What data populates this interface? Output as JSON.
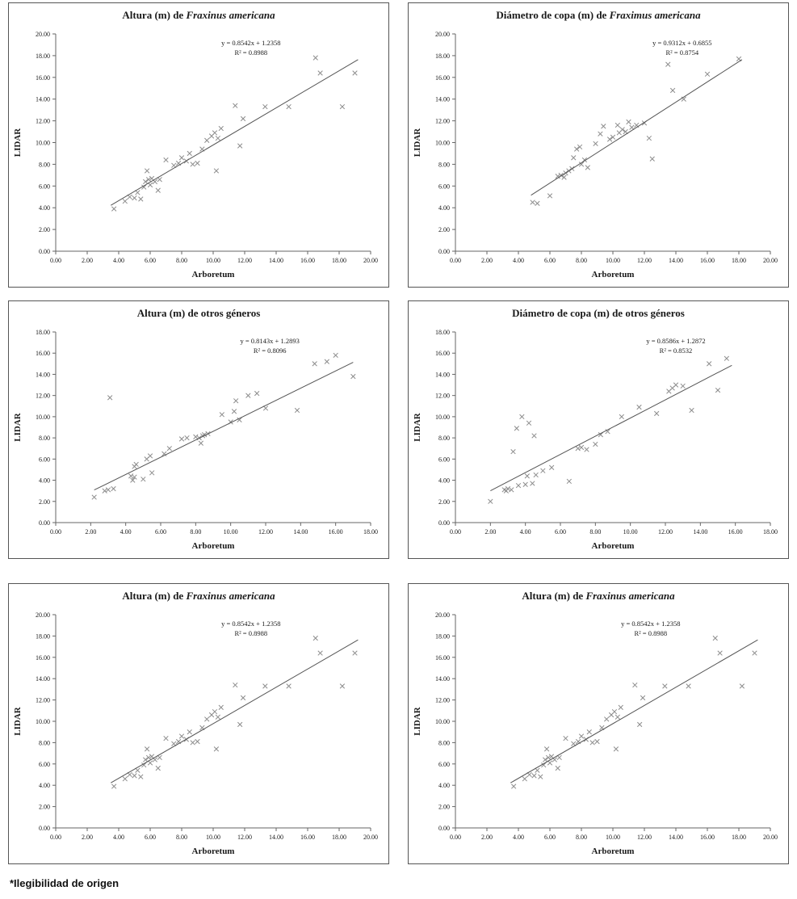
{
  "page": {
    "footnote": "*Ilegibilidad de origen"
  },
  "chart_data": [
    {
      "type": "scatter",
      "title_prefix": "Altura (m) de ",
      "title_italic": "Fraxinus americana",
      "equation_line1": "y = 0.8542x + 1.2358",
      "equation_line2": "R² = 0.8988",
      "xlabel": "Arboretum",
      "ylabel": "LIDAR",
      "xlim": [
        0,
        20
      ],
      "ylim": [
        0,
        20
      ],
      "tick_step": 2,
      "grid": false,
      "marker": "x",
      "marker_color": "#8c8c8c",
      "eq_x_frac": 0.62,
      "trendline": {
        "slope": 0.8542,
        "intercept": 1.2358,
        "x_start": 3.5,
        "x_end": 19.2
      },
      "points": [
        [
          3.7,
          3.9
        ],
        [
          4.4,
          4.6
        ],
        [
          4.7,
          5.0
        ],
        [
          5.0,
          4.9
        ],
        [
          5.2,
          5.4
        ],
        [
          5.4,
          4.8
        ],
        [
          5.6,
          5.9
        ],
        [
          5.7,
          6.4
        ],
        [
          5.8,
          7.4
        ],
        [
          5.9,
          6.6
        ],
        [
          6.0,
          6.1
        ],
        [
          6.1,
          6.7
        ],
        [
          6.3,
          6.4
        ],
        [
          6.5,
          5.6
        ],
        [
          6.6,
          6.6
        ],
        [
          7.0,
          8.4
        ],
        [
          7.5,
          7.9
        ],
        [
          7.8,
          8.1
        ],
        [
          8.0,
          8.6
        ],
        [
          8.3,
          8.3
        ],
        [
          8.5,
          9.0
        ],
        [
          8.7,
          8.0
        ],
        [
          9.0,
          8.1
        ],
        [
          9.3,
          9.4
        ],
        [
          9.6,
          10.2
        ],
        [
          9.9,
          10.6
        ],
        [
          10.1,
          10.9
        ],
        [
          10.2,
          7.4
        ],
        [
          10.3,
          10.4
        ],
        [
          10.5,
          11.3
        ],
        [
          11.4,
          13.4
        ],
        [
          11.7,
          9.7
        ],
        [
          11.9,
          12.2
        ],
        [
          13.3,
          13.3
        ],
        [
          14.8,
          13.3
        ],
        [
          16.5,
          17.8
        ],
        [
          16.8,
          16.4
        ],
        [
          18.2,
          13.3
        ],
        [
          19.0,
          16.4
        ]
      ]
    },
    {
      "type": "scatter",
      "title_prefix": "Diámetro de copa (m) de ",
      "title_italic": "Fraximus americana",
      "equation_line1": "y = 0.9312x + 0.6855",
      "equation_line2": "R² = 0.8754",
      "xlabel": "Arboretum",
      "ylabel": "LIDAR",
      "xlim": [
        0,
        20
      ],
      "ylim": [
        0,
        20
      ],
      "tick_step": 2,
      "grid": false,
      "marker": "x",
      "marker_color": "#8c8c8c",
      "eq_x_frac": 0.72,
      "trendline": {
        "slope": 0.9312,
        "intercept": 0.6855,
        "x_start": 4.8,
        "x_end": 18.2
      },
      "points": [
        [
          4.9,
          4.5
        ],
        [
          5.2,
          4.4
        ],
        [
          6.0,
          5.1
        ],
        [
          6.5,
          6.9
        ],
        [
          6.7,
          7.0
        ],
        [
          6.9,
          6.8
        ],
        [
          7.0,
          7.2
        ],
        [
          7.2,
          7.4
        ],
        [
          7.4,
          7.6
        ],
        [
          7.5,
          8.6
        ],
        [
          7.7,
          9.4
        ],
        [
          7.9,
          9.6
        ],
        [
          8.0,
          8.0
        ],
        [
          8.2,
          8.4
        ],
        [
          8.4,
          7.7
        ],
        [
          8.9,
          9.9
        ],
        [
          9.2,
          10.8
        ],
        [
          9.4,
          11.5
        ],
        [
          9.8,
          10.3
        ],
        [
          10.0,
          10.5
        ],
        [
          10.3,
          11.6
        ],
        [
          10.4,
          10.9
        ],
        [
          10.6,
          11.2
        ],
        [
          10.8,
          11.0
        ],
        [
          11.0,
          11.9
        ],
        [
          11.2,
          11.4
        ],
        [
          11.5,
          11.6
        ],
        [
          12.0,
          11.8
        ],
        [
          12.3,
          10.4
        ],
        [
          12.5,
          8.5
        ],
        [
          13.5,
          17.2
        ],
        [
          13.8,
          14.8
        ],
        [
          14.5,
          14.0
        ],
        [
          16.0,
          16.3
        ],
        [
          18.0,
          17.7
        ]
      ]
    },
    {
      "type": "scatter",
      "title_prefix": "Altura (m) de otros géneros",
      "title_italic": "",
      "equation_line1": "y = 0.8143x + 1.2893",
      "equation_line2": "R² = 0.8096",
      "xlabel": "Arboretum",
      "ylabel": "LIDAR",
      "xlim": [
        0,
        18
      ],
      "ylim": [
        0,
        18
      ],
      "tick_step": 2,
      "grid": false,
      "marker": "x",
      "marker_color": "#8c8c8c",
      "eq_x_frac": 0.68,
      "trendline": {
        "slope": 0.8143,
        "intercept": 1.2893,
        "x_start": 2.2,
        "x_end": 17.0
      },
      "points": [
        [
          2.2,
          2.4
        ],
        [
          2.8,
          3.0
        ],
        [
          3.0,
          3.1
        ],
        [
          3.1,
          11.8
        ],
        [
          3.3,
          3.2
        ],
        [
          4.3,
          4.4
        ],
        [
          4.4,
          4.0
        ],
        [
          4.5,
          4.3
        ],
        [
          4.5,
          5.3
        ],
        [
          4.6,
          5.5
        ],
        [
          5.0,
          4.1
        ],
        [
          5.2,
          6.0
        ],
        [
          5.4,
          6.3
        ],
        [
          5.5,
          4.7
        ],
        [
          6.2,
          6.5
        ],
        [
          6.5,
          7.0
        ],
        [
          7.2,
          7.9
        ],
        [
          7.5,
          8.0
        ],
        [
          8.0,
          8.1
        ],
        [
          8.2,
          8.0
        ],
        [
          8.3,
          7.5
        ],
        [
          8.4,
          8.2
        ],
        [
          8.5,
          8.3
        ],
        [
          8.7,
          8.4
        ],
        [
          9.5,
          10.2
        ],
        [
          10.0,
          9.5
        ],
        [
          10.2,
          10.5
        ],
        [
          10.3,
          11.5
        ],
        [
          10.5,
          9.7
        ],
        [
          11.0,
          12.0
        ],
        [
          11.5,
          12.2
        ],
        [
          12.0,
          10.8
        ],
        [
          13.8,
          10.6
        ],
        [
          14.8,
          15.0
        ],
        [
          15.5,
          15.2
        ],
        [
          16.0,
          15.8
        ],
        [
          17.0,
          13.8
        ]
      ]
    },
    {
      "type": "scatter",
      "title_prefix": "Diámetro de copa (m) de otros géneros",
      "title_italic": "",
      "equation_line1": "y = 0.8586x + 1.2872",
      "equation_line2": "R² = 0.8532",
      "xlabel": "Arboretum",
      "ylabel": "LIDAR",
      "xlim": [
        0,
        18
      ],
      "ylim": [
        0,
        18
      ],
      "tick_step": 2,
      "grid": false,
      "marker": "x",
      "marker_color": "#8c8c8c",
      "eq_x_frac": 0.7,
      "trendline": {
        "slope": 0.8586,
        "intercept": 1.2872,
        "x_start": 2.0,
        "x_end": 15.8
      },
      "points": [
        [
          2.0,
          2.0
        ],
        [
          2.8,
          3.1
        ],
        [
          2.9,
          3.0
        ],
        [
          3.0,
          3.2
        ],
        [
          3.2,
          3.1
        ],
        [
          3.3,
          6.7
        ],
        [
          3.5,
          8.9
        ],
        [
          3.6,
          3.5
        ],
        [
          3.8,
          10.0
        ],
        [
          4.0,
          3.6
        ],
        [
          4.1,
          4.4
        ],
        [
          4.2,
          9.4
        ],
        [
          4.4,
          3.7
        ],
        [
          4.5,
          8.2
        ],
        [
          4.6,
          4.5
        ],
        [
          5.0,
          4.9
        ],
        [
          5.5,
          5.2
        ],
        [
          6.5,
          3.9
        ],
        [
          7.0,
          7.0
        ],
        [
          7.2,
          7.1
        ],
        [
          7.5,
          6.9
        ],
        [
          8.0,
          7.4
        ],
        [
          8.3,
          8.3
        ],
        [
          8.7,
          8.6
        ],
        [
          9.5,
          10.0
        ],
        [
          10.5,
          10.9
        ],
        [
          11.5,
          10.3
        ],
        [
          12.2,
          12.4
        ],
        [
          12.4,
          12.7
        ],
        [
          12.6,
          13.0
        ],
        [
          13.0,
          12.9
        ],
        [
          13.5,
          10.6
        ],
        [
          14.5,
          15.0
        ],
        [
          15.0,
          12.5
        ],
        [
          15.5,
          15.5
        ]
      ]
    },
    {
      "type": "scatter",
      "title_prefix": "Altura (m) de ",
      "title_italic": "Fraxinus americana",
      "equation_line1": "y = 0.8542x + 1.2358",
      "equation_line2": "R² = 0.8988",
      "xlabel": "Arboretum",
      "ylabel": "LIDAR",
      "xlim": [
        0,
        20
      ],
      "ylim": [
        0,
        20
      ],
      "tick_step": 2,
      "grid": false,
      "marker": "x",
      "marker_color": "#8c8c8c",
      "eq_x_frac": 0.62,
      "trendline": {
        "slope": 0.8542,
        "intercept": 1.2358,
        "x_start": 3.5,
        "x_end": 19.2
      },
      "points": [
        [
          3.7,
          3.9
        ],
        [
          4.4,
          4.6
        ],
        [
          4.7,
          5.0
        ],
        [
          5.0,
          4.9
        ],
        [
          5.2,
          5.4
        ],
        [
          5.4,
          4.8
        ],
        [
          5.6,
          5.9
        ],
        [
          5.7,
          6.4
        ],
        [
          5.8,
          7.4
        ],
        [
          5.9,
          6.6
        ],
        [
          6.0,
          6.1
        ],
        [
          6.1,
          6.7
        ],
        [
          6.3,
          6.4
        ],
        [
          6.5,
          5.6
        ],
        [
          6.6,
          6.6
        ],
        [
          7.0,
          8.4
        ],
        [
          7.5,
          7.9
        ],
        [
          7.8,
          8.1
        ],
        [
          8.0,
          8.6
        ],
        [
          8.3,
          8.3
        ],
        [
          8.5,
          9.0
        ],
        [
          8.7,
          8.0
        ],
        [
          9.0,
          8.1
        ],
        [
          9.3,
          9.4
        ],
        [
          9.6,
          10.2
        ],
        [
          9.9,
          10.6
        ],
        [
          10.1,
          10.9
        ],
        [
          10.2,
          7.4
        ],
        [
          10.3,
          10.4
        ],
        [
          10.5,
          11.3
        ],
        [
          11.4,
          13.4
        ],
        [
          11.7,
          9.7
        ],
        [
          11.9,
          12.2
        ],
        [
          13.3,
          13.3
        ],
        [
          14.8,
          13.3
        ],
        [
          16.5,
          17.8
        ],
        [
          16.8,
          16.4
        ],
        [
          18.2,
          13.3
        ],
        [
          19.0,
          16.4
        ]
      ]
    },
    {
      "type": "scatter",
      "title_prefix": "Altura (m) de ",
      "title_italic": "Fraxinus americana",
      "equation_line1": "y = 0.8542x + 1.2358",
      "equation_line2": "R² = 0.8988",
      "xlabel": "Arboretum",
      "ylabel": "LIDAR",
      "xlim": [
        0,
        20
      ],
      "ylim": [
        0,
        20
      ],
      "tick_step": 2,
      "grid": false,
      "marker": "x",
      "marker_color": "#8c8c8c",
      "eq_x_frac": 0.62,
      "trendline": {
        "slope": 0.8542,
        "intercept": 1.2358,
        "x_start": 3.5,
        "x_end": 19.2
      },
      "points": [
        [
          3.7,
          3.9
        ],
        [
          4.4,
          4.6
        ],
        [
          4.7,
          5.0
        ],
        [
          5.0,
          4.9
        ],
        [
          5.2,
          5.4
        ],
        [
          5.4,
          4.8
        ],
        [
          5.6,
          5.9
        ],
        [
          5.7,
          6.4
        ],
        [
          5.8,
          7.4
        ],
        [
          5.9,
          6.6
        ],
        [
          6.0,
          6.1
        ],
        [
          6.1,
          6.7
        ],
        [
          6.3,
          6.4
        ],
        [
          6.5,
          5.6
        ],
        [
          6.6,
          6.6
        ],
        [
          7.0,
          8.4
        ],
        [
          7.5,
          7.9
        ],
        [
          7.8,
          8.1
        ],
        [
          8.0,
          8.6
        ],
        [
          8.3,
          8.3
        ],
        [
          8.5,
          9.0
        ],
        [
          8.7,
          8.0
        ],
        [
          9.0,
          8.1
        ],
        [
          9.3,
          9.4
        ],
        [
          9.6,
          10.2
        ],
        [
          9.9,
          10.6
        ],
        [
          10.1,
          10.9
        ],
        [
          10.2,
          7.4
        ],
        [
          10.3,
          10.4
        ],
        [
          10.5,
          11.3
        ],
        [
          11.4,
          13.4
        ],
        [
          11.7,
          9.7
        ],
        [
          11.9,
          12.2
        ],
        [
          13.3,
          13.3
        ],
        [
          14.8,
          13.3
        ],
        [
          16.5,
          17.8
        ],
        [
          16.8,
          16.4
        ],
        [
          18.2,
          13.3
        ],
        [
          19.0,
          16.4
        ]
      ]
    }
  ]
}
